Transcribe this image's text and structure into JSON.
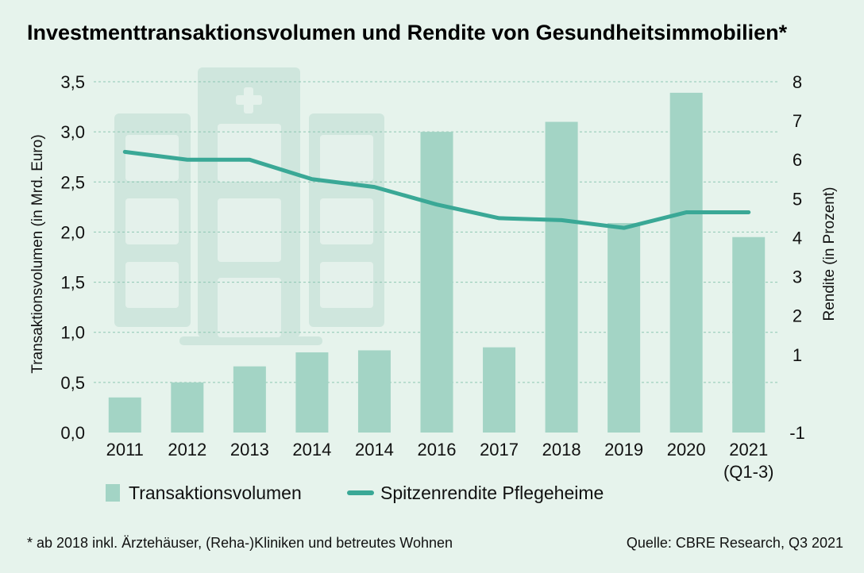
{
  "title": "Investmenttransaktionsvolumen und Rendite von Gesundheitsimmobilien*",
  "footnote": "* ab 2018 inkl. Ärztehäuser, (Reha-)Kliniken und betreutes Wohnen",
  "source": "Quelle: CBRE Research, Q3 2021",
  "colors": {
    "background": "#e6f3ec",
    "bar": "#a3d4c5",
    "line": "#3aa896",
    "grid": "#8ec7b3",
    "decoration": "#cfe6dd"
  },
  "chart_data": {
    "type": "bar",
    "categories": [
      "2011",
      "2012",
      "2013",
      "2014",
      "2014",
      "2016",
      "2017",
      "2018",
      "2019",
      "2020",
      "2021"
    ],
    "category_sublabels": [
      "",
      "",
      "",
      "",
      "",
      "",
      "",
      "",
      "",
      "",
      "(Q1-3)"
    ],
    "series": [
      {
        "name": "Transaktionsvolumen",
        "type": "bar",
        "axis": "left",
        "values": [
          0.35,
          0.5,
          0.66,
          0.8,
          0.82,
          3.0,
          0.85,
          3.1,
          2.09,
          3.39,
          1.95
        ]
      },
      {
        "name": "Spitzenrendite Pflegeheime",
        "type": "line",
        "axis": "right",
        "values": [
          6.2,
          6.0,
          6.0,
          5.5,
          5.3,
          4.85,
          4.5,
          4.45,
          4.25,
          4.65,
          4.65
        ]
      }
    ],
    "ylabel": "Transaktionsvolumen (in Mrd. Euro)",
    "ylabel_right": "Rendite (in Prozent)",
    "ylim": [
      0,
      3.5
    ],
    "ylim_right": [
      -1,
      8
    ],
    "yticks": [
      "0,0",
      "0,5",
      "1,0",
      "1,5",
      "2,0",
      "2,5",
      "3,0",
      "3,5"
    ],
    "yticks_right": [
      "-1",
      "1",
      "2",
      "3",
      "4",
      "5",
      "6",
      "7",
      "8"
    ],
    "grid": true,
    "legend_position": "bottom"
  }
}
